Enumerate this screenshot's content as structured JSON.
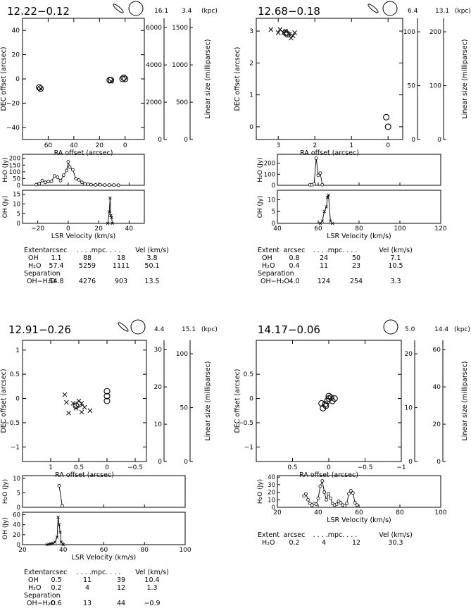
{
  "chart_data": [
    {
      "type": "scatter",
      "title": "12.22−0.12",
      "units": {
        "kpc_near": "16.1",
        "kpc_far": "3.4",
        "kpc_label": "(kpc)"
      },
      "position_plot": {
        "xlabel": "RA offset (arcsec)",
        "ylabel": "DEC offset (arcsec)",
        "xticks": [
          "60",
          "40",
          "20",
          "0"
        ],
        "yticks": [
          "40",
          "20",
          "0",
          "−20",
          "−40"
        ],
        "xlim": [
          80,
          -15
        ],
        "ylim": [
          -50,
          50
        ],
        "lin_axis1_ticks": [
          "6000",
          "4000",
          "2000",
          "0"
        ],
        "lin_axis2_ticks": [
          "1500",
          "1000",
          "500",
          "0"
        ],
        "lin_label": "Linear size (milliparsec)",
        "h2o_points": [
          [
            67,
            -7
          ],
          [
            66,
            -8
          ],
          [
            12,
            -1
          ],
          [
            11,
            -1
          ],
          [
            2,
            0
          ],
          [
            0,
            0
          ],
          [
            1,
            1
          ]
        ],
        "oh_points": [
          [
            66,
            -8
          ],
          [
            11,
            -2
          ]
        ]
      },
      "spectra": {
        "xlabel": "LSR Velocity (km/s)",
        "xticks": [
          "−20",
          "0",
          "20",
          "40"
        ],
        "xlim": [
          -30,
          50
        ],
        "h2o_label": "H₂O (Jy)",
        "h2o_yticks": [
          "200",
          "150",
          "100",
          "50",
          "0"
        ],
        "h2o_ylim": [
          0,
          230
        ],
        "h2o": [
          [
            -21,
            5
          ],
          [
            -19,
            12
          ],
          [
            -17,
            35
          ],
          [
            -15,
            22
          ],
          [
            -13,
            28
          ],
          [
            -11,
            30
          ],
          [
            -9,
            70
          ],
          [
            -7,
            60
          ],
          [
            -5,
            35
          ],
          [
            -3,
            75
          ],
          [
            -1,
            110
          ],
          [
            0,
            175
          ],
          [
            1,
            135
          ],
          [
            3,
            115
          ],
          [
            5,
            50
          ],
          [
            7,
            40
          ],
          [
            9,
            22
          ],
          [
            11,
            10
          ],
          [
            13,
            8
          ],
          [
            15,
            5
          ],
          [
            18,
            3
          ],
          [
            21,
            4
          ],
          [
            24,
            2
          ],
          [
            27,
            2
          ],
          [
            30,
            2
          ],
          [
            33,
            1
          ]
        ],
        "oh_label": "OH (Jy)",
        "oh_yticks": [
          "15",
          "10",
          "5",
          "0"
        ],
        "oh_ylim": [
          0,
          17
        ],
        "oh": [
          [
            26,
            0
          ],
          [
            27,
            6
          ],
          [
            27.5,
            13
          ],
          [
            28,
            4
          ],
          [
            28.5,
            3
          ],
          [
            29,
            0
          ]
        ]
      },
      "table": {
        "header": [
          "Extent",
          "arcsec",
          ". . . .mpc. . . .",
          "",
          "Vel (km/s)"
        ],
        "rows": [
          [
            "OH",
            "1.1",
            "88",
            "18",
            "3.8"
          ],
          [
            "H₂O",
            "57.4",
            "5259",
            "1111",
            "50.1"
          ]
        ],
        "sep_label": "Separation",
        "sep_row": [
          "OH−H₂O",
          "54.8",
          "4276",
          "903",
          "13.5"
        ]
      }
    },
    {
      "type": "scatter",
      "title": "12.68−0.18",
      "units": {
        "kpc_near": "6.4",
        "kpc_far": "13.1",
        "kpc_label": "(kpc)"
      },
      "position_plot": {
        "xlabel": "RA offset (arcsec)",
        "ylabel": "DEC offset (arcsec)",
        "xticks": [
          "3",
          "2",
          "1",
          "0"
        ],
        "yticks": [
          "3",
          "2",
          "1",
          "0"
        ],
        "xlim": [
          3.6,
          -0.4
        ],
        "ylim": [
          -0.4,
          3.4
        ],
        "lin_axis1_ticks": [
          "100",
          "50",
          "0"
        ],
        "lin_axis2_ticks": [
          "200",
          "100",
          "0"
        ],
        "lin_label": "Linear size (milliparsec)",
        "h2o_points": [
          [
            0.05,
            0.3
          ],
          [
            0.0,
            0.0
          ],
          [
            2.8,
            2.95
          ],
          [
            2.75,
            2.9
          ]
        ],
        "oh_points": [
          [
            3.2,
            3.05
          ],
          [
            2.95,
            3.05
          ],
          [
            2.85,
            2.95
          ],
          [
            2.6,
            2.85
          ],
          [
            2.55,
            2.95
          ],
          [
            2.7,
            2.9
          ],
          [
            2.65,
            2.78
          ],
          [
            2.8,
            3.0
          ],
          [
            3.0,
            2.95
          ]
        ]
      },
      "spectra": {
        "xlabel": "LSR Velocity (km/s)",
        "xticks": [
          "40",
          "60",
          "80",
          "100",
          "120"
        ],
        "xlim": [
          40,
          120
        ],
        "h2o_label": "H₂O (Jy)",
        "h2o_yticks": [
          "200",
          "100",
          "0"
        ],
        "h2o_ylim": [
          0,
          280
        ],
        "h2o": [
          [
            56,
            5
          ],
          [
            57,
            5
          ],
          [
            58,
            12
          ],
          [
            59,
            245
          ],
          [
            60,
            90
          ],
          [
            61,
            110
          ],
          [
            62,
            5
          ]
        ],
        "oh_label": "OH (Jy)",
        "oh_yticks": [
          "10",
          "5",
          "0"
        ],
        "oh_ylim": [
          0,
          14
        ],
        "oh": [
          [
            61,
            0
          ],
          [
            62,
            1
          ],
          [
            63,
            5
          ],
          [
            64,
            7
          ],
          [
            64.5,
            11
          ],
          [
            65,
            12
          ],
          [
            66,
            1
          ],
          [
            67,
            0
          ]
        ]
      },
      "table": {
        "header": [
          "Extent",
          "arcsec",
          ". . . .mpc. . . .",
          "",
          "Vel (km/s)"
        ],
        "rows": [
          [
            "OH",
            "0.8",
            "24",
            "50",
            "7.1"
          ],
          [
            "H₂O",
            "0.4",
            "11",
            "23",
            "10.5"
          ]
        ],
        "sep_label": "Separation",
        "sep_row": [
          "OH−H₂O",
          "4.0",
          "124",
          "254",
          "3.3"
        ]
      }
    },
    {
      "type": "scatter",
      "title": "12.91−0.26",
      "units": {
        "kpc_near": "4.4",
        "kpc_far": "15.1",
        "kpc_label": "(kpc)"
      },
      "position_plot": {
        "xlabel": "RA offset (arcsec)",
        "ylabel": "DEC offset (arcsec)",
        "xticks": [
          "1",
          "0.5",
          "0",
          "−0.5"
        ],
        "yticks": [
          "1",
          "0.5",
          "0",
          "−0.5",
          "−1"
        ],
        "xlim": [
          1.5,
          -0.7
        ],
        "ylim": [
          -1.3,
          1.2
        ],
        "lin_axis1_ticks": [
          "30",
          "20",
          "10",
          "0"
        ],
        "lin_axis2_ticks": [
          "100",
          "50",
          "0"
        ],
        "lin_label": "Linear size (milliparsec)",
        "h2o_points": [
          [
            0.0,
            0.15
          ],
          [
            0.0,
            0.05
          ],
          [
            0.0,
            -0.05
          ],
          [
            0.5,
            -0.12
          ],
          [
            0.55,
            -0.15
          ]
        ],
        "oh_points": [
          [
            0.75,
            0.08
          ],
          [
            0.72,
            -0.08
          ],
          [
            0.6,
            -0.1
          ],
          [
            0.55,
            -0.2
          ],
          [
            0.5,
            -0.05
          ],
          [
            0.45,
            -0.1
          ],
          [
            0.4,
            -0.18
          ],
          [
            0.68,
            -0.3
          ],
          [
            0.45,
            -0.28
          ],
          [
            0.3,
            -0.25
          ]
        ]
      },
      "spectra": {
        "xlabel": "LSR Velocity (km/s)",
        "xticks": [
          "20",
          "40",
          "60",
          "80",
          "100"
        ],
        "xlim": [
          20,
          100
        ],
        "h2o_label": "H₂O (Jy)",
        "h2o_yticks": [
          "10",
          "5",
          "0"
        ],
        "h2o_ylim": [
          0,
          11
        ],
        "h2o": [
          [
            38,
            7.5
          ],
          [
            39.5,
            0.5
          ]
        ],
        "oh_label": "OH (Jy)",
        "oh_yticks": [
          "60",
          "40",
          "20",
          "0"
        ],
        "oh_ylim": [
          0,
          65
        ],
        "oh": [
          [
            32,
            0
          ],
          [
            33,
            1
          ],
          [
            34,
            2
          ],
          [
            35,
            3
          ],
          [
            36,
            5
          ],
          [
            37,
            15
          ],
          [
            37.5,
            55
          ],
          [
            38,
            40
          ],
          [
            38.5,
            25
          ],
          [
            39,
            5
          ],
          [
            40,
            0
          ]
        ]
      },
      "table": {
        "header": [
          "Extent",
          "arcsec",
          ". . . .mpc. . . .",
          "",
          "Vel (km/s)"
        ],
        "rows": [
          [
            "OH",
            "0.5",
            "11",
            "39",
            "10.4"
          ],
          [
            "H₂O",
            "0.2",
            "4",
            "12",
            "1.3"
          ]
        ],
        "sep_label": "Separation",
        "sep_row": [
          "OH−H₂O",
          "0.6",
          "13",
          "44",
          "−0.9"
        ]
      }
    },
    {
      "type": "scatter",
      "title": "14.17−0.06",
      "units": {
        "kpc_near": "5.0",
        "kpc_far": "14.4",
        "kpc_label": "(kpc)"
      },
      "position_plot": {
        "xlabel": "RA offset (arcsec)",
        "ylabel": "DEC offset (arcsec)",
        "xticks": [
          "0.5",
          "0",
          "−0.5",
          "−1"
        ],
        "yticks": [
          "0.5",
          "0",
          "−0.5",
          "−1"
        ],
        "xlim": [
          1.0,
          -1.0
        ],
        "ylim": [
          -1.3,
          1.2
        ],
        "lin_axis1_ticks": [
          "20",
          "10",
          "0"
        ],
        "lin_axis2_ticks": [
          "60",
          "40",
          "20",
          "0"
        ],
        "lin_label": "Linear size (milliparsec)",
        "h2o_points": [
          [
            0.05,
            -0.12
          ],
          [
            0.02,
            -0.05
          ],
          [
            0.0,
            0.0
          ],
          [
            -0.03,
            0.02
          ],
          [
            0.08,
            -0.2
          ],
          [
            -0.05,
            -0.05
          ],
          [
            0.1,
            -0.1
          ],
          [
            0.0,
            0.05
          ],
          [
            -0.08,
            0.0
          ],
          [
            0.04,
            -0.15
          ]
        ],
        "oh_points": []
      },
      "spectra": {
        "xlabel": "LSR Velocity (km/s)",
        "xticks": [
          "20",
          "40",
          "60",
          "80",
          "100"
        ],
        "xlim": [
          20,
          100
        ],
        "h2o_label": "H₂O (Jy)",
        "h2o_yticks": [
          "40",
          "30",
          "20",
          "10",
          "0"
        ],
        "h2o_ylim": [
          0,
          42
        ],
        "h2o": [
          [
            33,
            15
          ],
          [
            34,
            18
          ],
          [
            35,
            10
          ],
          [
            36,
            5
          ],
          [
            37,
            3
          ],
          [
            38,
            5
          ],
          [
            39,
            4
          ],
          [
            40,
            12
          ],
          [
            41,
            28
          ],
          [
            42,
            35
          ],
          [
            43,
            20
          ],
          [
            44,
            10
          ],
          [
            45,
            18
          ],
          [
            46,
            12
          ],
          [
            47,
            5
          ],
          [
            48,
            3
          ],
          [
            49,
            4
          ],
          [
            50,
            8
          ],
          [
            51,
            6
          ],
          [
            52,
            3
          ],
          [
            53,
            2
          ],
          [
            54,
            5
          ],
          [
            55,
            18
          ],
          [
            56,
            22
          ],
          [
            57,
            19
          ],
          [
            58,
            6
          ],
          [
            59,
            3
          ]
        ],
        "oh_label": "",
        "oh_yticks": [],
        "oh": []
      },
      "table": {
        "header": [
          "Extent",
          "arcsec",
          ". . . .mpc. . . .",
          "",
          "Vel (km/s)"
        ],
        "rows": [
          [
            "H₂O",
            "0.2",
            "4",
            "12",
            "30.3"
          ]
        ],
        "sep_label": "",
        "sep_row": []
      }
    }
  ]
}
